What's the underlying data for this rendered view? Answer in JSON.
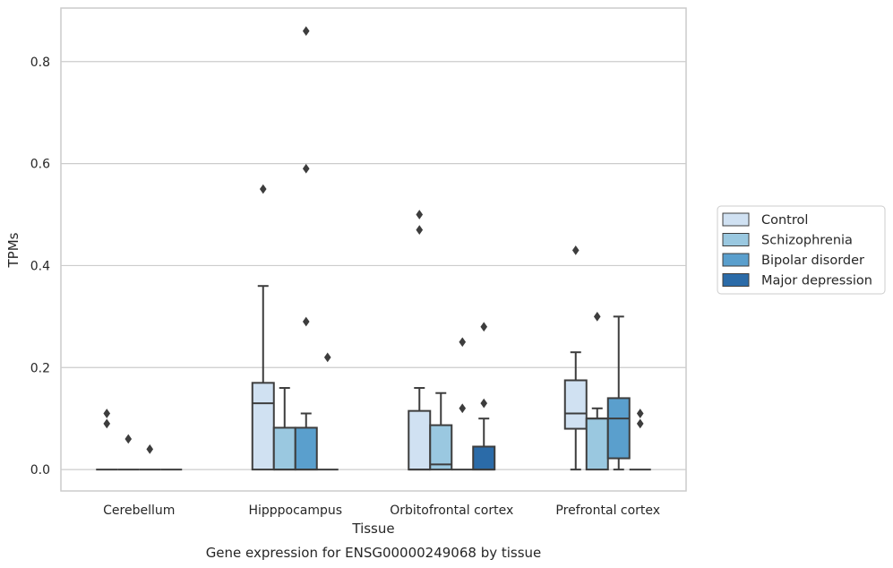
{
  "chart_data": {
    "type": "box",
    "title": "",
    "caption": "Gene expression for ENSG00000249068 by tissue",
    "xlabel": "Tissue",
    "ylabel": "TPMs",
    "ylim": [
      -0.042,
      0.905
    ],
    "yticks": [
      0.0,
      0.2,
      0.4,
      0.6,
      0.8
    ],
    "ytick_labels": [
      "0.0",
      "0.2",
      "0.4",
      "0.6",
      "0.8"
    ],
    "grid": "horizontal",
    "legend_position": "right",
    "categories": [
      "Cerebellum",
      "Hipppocampus",
      "Orbitofrontal cortex",
      "Prefrontal cortex"
    ],
    "series": [
      {
        "name": "Control",
        "color": "#d0e1f2",
        "boxes": [
          {
            "whislo": 0,
            "q1": 0,
            "med": 0,
            "q3": 0,
            "whishi": 0,
            "fliers": [
              0.11,
              0.09
            ]
          },
          {
            "whislo": 0,
            "q1": 0,
            "med": 0.13,
            "q3": 0.17,
            "whishi": 0.36,
            "fliers": [
              0.55
            ]
          },
          {
            "whislo": 0,
            "q1": 0,
            "med": 0,
            "q3": 0.115,
            "whishi": 0.16,
            "fliers": [
              0.5,
              0.47
            ]
          },
          {
            "whislo": 0,
            "q1": 0.08,
            "med": 0.11,
            "q3": 0.175,
            "whishi": 0.23,
            "fliers": [
              0.43
            ]
          }
        ]
      },
      {
        "name": "Schizophrenia",
        "color": "#9ac8e0",
        "boxes": [
          {
            "whislo": 0,
            "q1": 0,
            "med": 0,
            "q3": 0,
            "whishi": 0,
            "fliers": [
              0.06
            ]
          },
          {
            "whislo": 0,
            "q1": 0,
            "med": 0,
            "q3": 0.082,
            "whishi": 0.16,
            "fliers": []
          },
          {
            "whislo": 0,
            "q1": 0,
            "med": 0.01,
            "q3": 0.087,
            "whishi": 0.15,
            "fliers": []
          },
          {
            "whislo": 0,
            "q1": 0,
            "med": 0.1,
            "q3": 0.1,
            "whishi": 0.12,
            "fliers": [
              0.3
            ]
          }
        ]
      },
      {
        "name": "Bipolar disorder",
        "color": "#5a9fcd",
        "boxes": [
          {
            "whislo": 0,
            "q1": 0,
            "med": 0,
            "q3": 0,
            "whishi": 0,
            "fliers": [
              0.04
            ]
          },
          {
            "whislo": 0,
            "q1": 0,
            "med": 0,
            "q3": 0.082,
            "whishi": 0.11,
            "fliers": [
              0.86,
              0.59,
              0.29
            ]
          },
          {
            "whislo": 0,
            "q1": 0,
            "med": 0,
            "q3": 0,
            "whishi": 0,
            "fliers": [
              0.25,
              0.12
            ]
          },
          {
            "whislo": 0,
            "q1": 0.022,
            "med": 0.1,
            "q3": 0.14,
            "whishi": 0.3,
            "fliers": []
          }
        ]
      },
      {
        "name": "Major depression",
        "color": "#2b6ba8",
        "boxes": [
          {
            "whislo": 0,
            "q1": 0,
            "med": 0,
            "q3": 0,
            "whishi": 0,
            "fliers": []
          },
          {
            "whislo": 0,
            "q1": 0,
            "med": 0,
            "q3": 0,
            "whishi": 0,
            "fliers": [
              0.22
            ]
          },
          {
            "whislo": 0,
            "q1": 0,
            "med": 0,
            "q3": 0.045,
            "whishi": 0.1,
            "fliers": [
              0.28,
              0.13
            ]
          },
          {
            "whislo": 0,
            "q1": 0,
            "med": 0,
            "q3": 0,
            "whishi": 0,
            "fliers": [
              0.11,
              0.09
            ]
          }
        ]
      }
    ]
  }
}
